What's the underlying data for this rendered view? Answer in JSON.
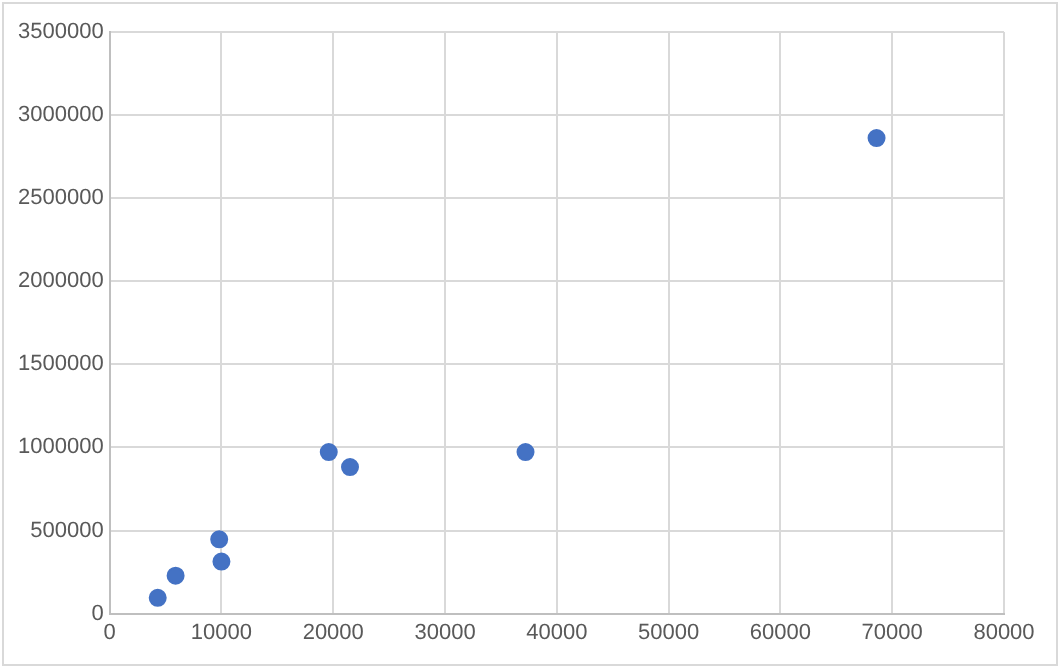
{
  "chart_data": {
    "type": "scatter",
    "x": [
      4300,
      5900,
      9800,
      10000,
      19600,
      21500,
      37200,
      68600
    ],
    "values": [
      95000,
      228000,
      447000,
      313000,
      972000,
      882000,
      972000,
      2862000
    ],
    "color": "#4472c4",
    "marker": "circle",
    "xlim": [
      0,
      80000
    ],
    "xticks": [
      0,
      10000,
      20000,
      30000,
      40000,
      50000,
      60000,
      70000,
      80000
    ],
    "ylim": [
      0,
      3500000
    ],
    "yticks": [
      0,
      500000,
      1000000,
      1500000,
      2000000,
      2500000,
      3000000,
      3500000
    ],
    "grid": true,
    "legend": false
  }
}
